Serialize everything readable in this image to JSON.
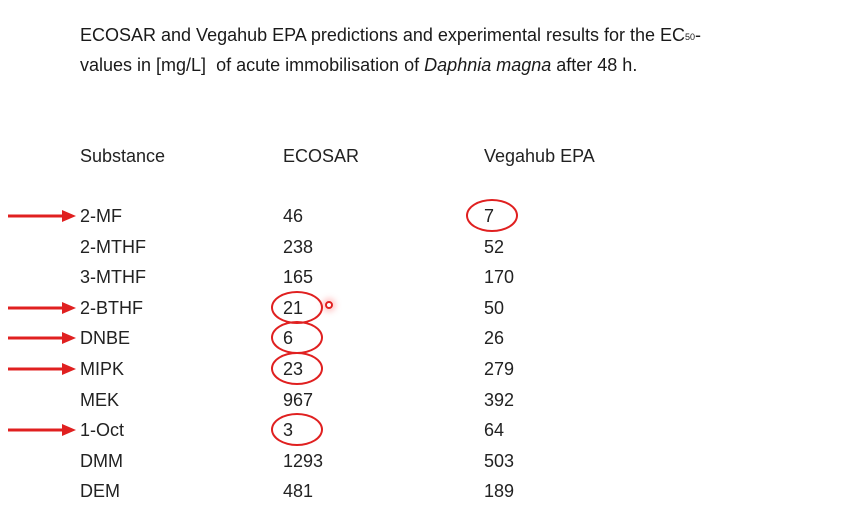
{
  "caption": {
    "part1": "ECOSAR and Vegahub EPA predictions and experimental results for the EC",
    "subscript": "50",
    "part2": "-",
    "line2_a": "values in [mg/L]  of acute immobilisation of ",
    "species": "Daphnia magna",
    "line2_b": " after 48 h."
  },
  "table": {
    "headers": {
      "substance": "Substance",
      "ecosar": "ECOSAR",
      "vegahub": "Vegahub EPA"
    },
    "rows": [
      {
        "substance": "2-MF",
        "ecosar": "46",
        "vegahub": "7",
        "arrow": true,
        "circle": "vegahub"
      },
      {
        "substance": "2-MTHF",
        "ecosar": "238",
        "vegahub": "52",
        "arrow": false,
        "circle": ""
      },
      {
        "substance": "3-MTHF",
        "ecosar": "165",
        "vegahub": "170",
        "arrow": false,
        "circle": ""
      },
      {
        "substance": "2-BTHF",
        "ecosar": "21",
        "vegahub": "50",
        "arrow": true,
        "circle": "ecosar"
      },
      {
        "substance": "DNBE",
        "ecosar": "6",
        "vegahub": "26",
        "arrow": true,
        "circle": "ecosar"
      },
      {
        "substance": "MIPK",
        "ecosar": "23",
        "vegahub": "279",
        "arrow": true,
        "circle": "ecosar"
      },
      {
        "substance": "MEK",
        "ecosar": "967",
        "vegahub": "392",
        "arrow": false,
        "circle": ""
      },
      {
        "substance": "1-Oct",
        "ecosar": "3",
        "vegahub": "64",
        "arrow": true,
        "circle": "ecosar"
      },
      {
        "substance": "DMM",
        "ecosar": "1293",
        "vegahub": "503",
        "arrow": false,
        "circle": ""
      },
      {
        "substance": "DEM",
        "ecosar": "481",
        "vegahub": "189",
        "arrow": false,
        "circle": ""
      }
    ]
  },
  "colors": {
    "highlight": "#e02020",
    "text": "#222222"
  }
}
